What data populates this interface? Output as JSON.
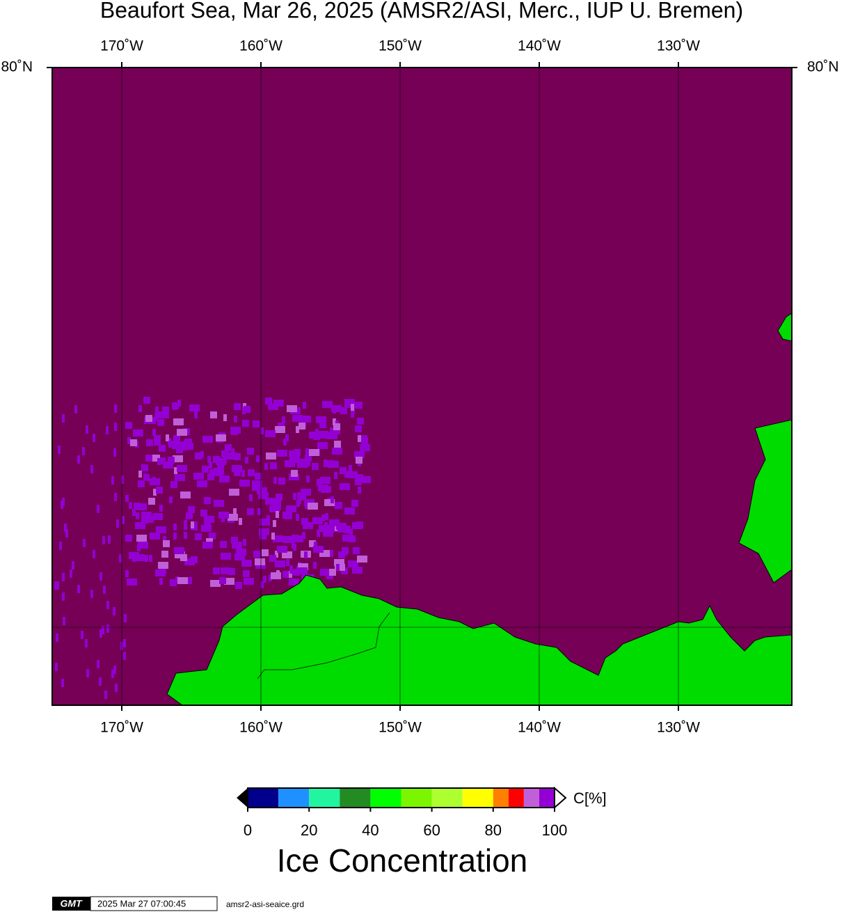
{
  "map": {
    "title": "Beaufort Sea, Mar 26, 2025 (AMSR2/ASI, Merc., IUP U. Bremen)",
    "lonlim": [
      -175,
      -121.85
    ],
    "lon_ticks": [
      {
        "value": -170,
        "label": "170˚W"
      },
      {
        "value": -160,
        "label": "160˚W"
      },
      {
        "value": -150,
        "label": "150˚W"
      },
      {
        "value": -140,
        "label": "140˚W"
      },
      {
        "value": -130,
        "label": "130˚W"
      }
    ],
    "lat_ticks": [
      {
        "value": 80,
        "label": "80˚N"
      }
    ]
  },
  "colorbar": {
    "bins": [
      0,
      10,
      20,
      30,
      40,
      50,
      60,
      70,
      80,
      85,
      90,
      95,
      100
    ],
    "colors": [
      "#00008c",
      "#1e90ff",
      "#21f5a0",
      "#228b22",
      "#00ff00",
      "#7cf500",
      "#adff2f",
      "#ffff00",
      "#ff8000",
      "#ff0000",
      "#c060d8",
      "#9400d3"
    ],
    "ticks": [
      0,
      20,
      40,
      60,
      80,
      100
    ],
    "unit": "C[%]",
    "title": "Ice Concentration"
  },
  "footer": {
    "logo": "GMT",
    "timestamp": "2025 Mar 27 07:00:45",
    "file": "amsr2-asi-seaice.grd"
  }
}
